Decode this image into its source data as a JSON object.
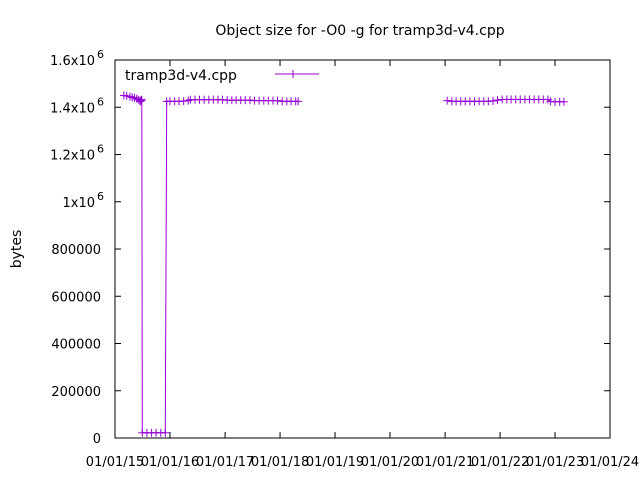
{
  "chart_data": {
    "type": "line",
    "title": "Object size for -O0 -g for tramp3d-v4.cpp",
    "xlabel": "",
    "ylabel": "bytes",
    "legend_position": "top-left",
    "grid": false,
    "ylim": [
      0,
      1600000
    ],
    "xlim": [
      "2015-01-01",
      "2024-01-01"
    ],
    "y_ticks": [
      {
        "value": 0,
        "label": "0",
        "exp": ""
      },
      {
        "value": 200000,
        "label": "200000",
        "exp": ""
      },
      {
        "value": 400000,
        "label": "400000",
        "exp": ""
      },
      {
        "value": 600000,
        "label": "600000",
        "exp": ""
      },
      {
        "value": 800000,
        "label": "800000",
        "exp": ""
      },
      {
        "value": 1000000,
        "label": "1x10",
        "exp": "6"
      },
      {
        "value": 1200000,
        "label": "1.2x10",
        "exp": "6"
      },
      {
        "value": 1400000,
        "label": "1.4x10",
        "exp": "6"
      },
      {
        "value": 1600000,
        "label": "1.6x10",
        "exp": "6"
      }
    ],
    "x_ticks": [
      {
        "value": "2015-01-01",
        "label": "01/01/15"
      },
      {
        "value": "2016-01-01",
        "label": "01/01/16"
      },
      {
        "value": "2017-01-01",
        "label": "01/01/17"
      },
      {
        "value": "2018-01-01",
        "label": "01/01/18"
      },
      {
        "value": "2019-01-01",
        "label": "01/01/19"
      },
      {
        "value": "2020-01-01",
        "label": "01/01/20"
      },
      {
        "value": "2021-01-01",
        "label": "01/01/21"
      },
      {
        "value": "2022-01-01",
        "label": "01/01/22"
      },
      {
        "value": "2023-01-01",
        "label": "01/01/23"
      },
      {
        "value": "2024-01-01",
        "label": "01/01/24"
      }
    ],
    "series": [
      {
        "name": "tramp3d-v4.cpp",
        "color": "#9400d3",
        "segments": [
          {
            "x": [
              "2015-03-01",
              "2015-03-20",
              "2015-04-10",
              "2015-04-25",
              "2015-05-10",
              "2015-05-25",
              "2015-06-05",
              "2015-06-15",
              "2015-06-20",
              "2015-06-24",
              "2015-06-28",
              "2015-07-01",
              "2015-08-01",
              "2015-09-01",
              "2015-10-01",
              "2015-11-01",
              "2015-12-01",
              "2015-12-10",
              "2016-01-01",
              "2016-02-01",
              "2016-03-01",
              "2016-04-01",
              "2016-05-01",
              "2016-05-15",
              "2016-06-15",
              "2016-07-15",
              "2016-08-15",
              "2016-09-15",
              "2016-10-15",
              "2016-11-15",
              "2016-12-15",
              "2017-01-15",
              "2017-02-15",
              "2017-03-15",
              "2017-04-15",
              "2017-05-15",
              "2017-06-15",
              "2017-07-15",
              "2017-08-15",
              "2017-09-15",
              "2017-10-15",
              "2017-11-15",
              "2017-12-15",
              "2018-01-15",
              "2018-02-15",
              "2018-03-15",
              "2018-04-15",
              "2018-05-01"
            ],
            "y": [
              1450000,
              1448000,
              1445000,
              1442000,
              1440000,
              1436000,
              1432000,
              1428000,
              1425000,
              1430000,
              1432000,
              22000,
              22000,
              22000,
              22000,
              22000,
              22000,
              1425000,
              1425000,
              1425000,
              1425000,
              1426000,
              1428000,
              1432000,
              1432000,
              1432000,
              1432000,
              1432000,
              1432000,
              1432000,
              1432000,
              1430000,
              1430000,
              1430000,
              1430000,
              1430000,
              1430000,
              1428000,
              1428000,
              1428000,
              1428000,
              1428000,
              1428000,
              1425000,
              1425000,
              1425000,
              1425000,
              1425000
            ]
          },
          {
            "x": [
              "2021-01-15",
              "2021-02-15",
              "2021-03-15",
              "2021-04-15",
              "2021-05-15",
              "2021-06-15",
              "2021-07-15",
              "2021-08-15",
              "2021-09-15",
              "2021-10-15",
              "2021-11-15",
              "2021-12-15",
              "2022-01-15",
              "2022-02-15",
              "2022-03-15",
              "2022-04-15",
              "2022-05-15",
              "2022-06-15",
              "2022-07-15",
              "2022-08-15",
              "2022-09-15",
              "2022-10-15",
              "2022-11-15",
              "2022-12-01",
              "2023-01-01",
              "2023-02-01",
              "2023-03-01"
            ],
            "y": [
              1428000,
              1425000,
              1425000,
              1425000,
              1425000,
              1425000,
              1425000,
              1425000,
              1425000,
              1425000,
              1427000,
              1430000,
              1433000,
              1433000,
              1433000,
              1433000,
              1433000,
              1433000,
              1433000,
              1433000,
              1433000,
              1433000,
              1433000,
              1425000,
              1423000,
              1423000,
              1423000
            ]
          }
        ]
      }
    ]
  }
}
